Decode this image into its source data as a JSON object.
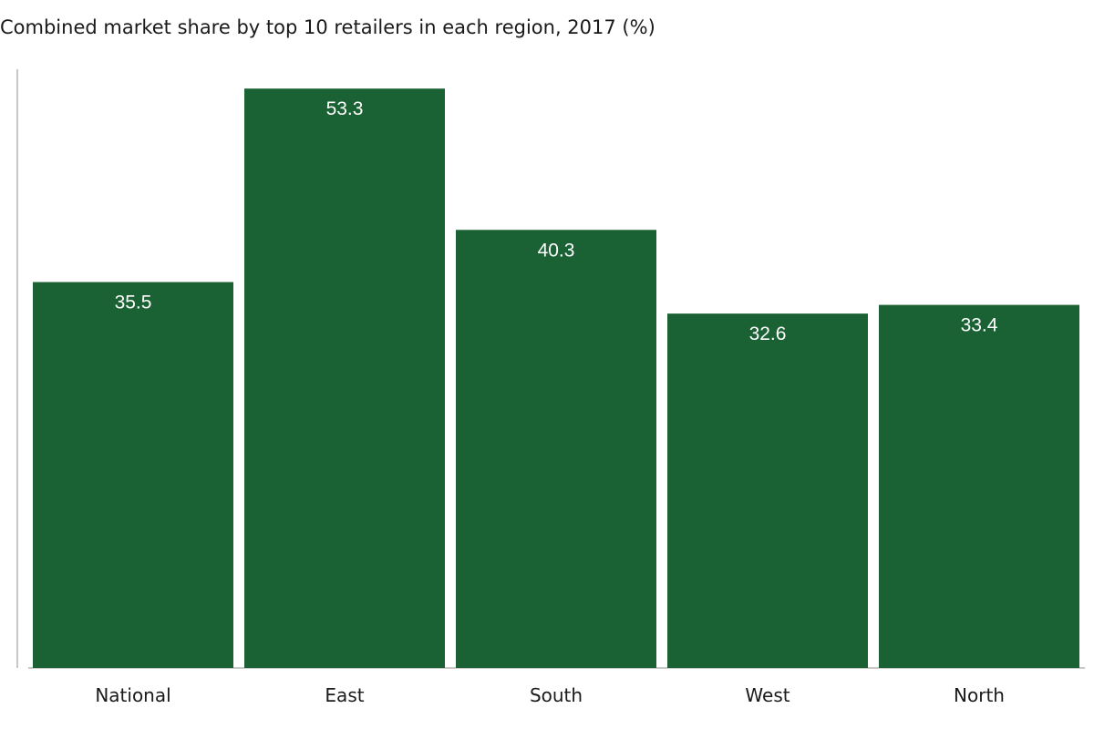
{
  "chart_data": {
    "type": "bar",
    "title": "Combined market share by top 10 retailers in each region, 2017 (%)",
    "categories": [
      "National",
      "East",
      "South",
      "West",
      "North"
    ],
    "values": [
      35.5,
      53.3,
      40.3,
      32.6,
      33.4
    ],
    "value_labels": [
      "35.5",
      "53.3",
      "40.3",
      "32.6",
      "33.4"
    ],
    "xlabel": "",
    "ylabel": "",
    "ylim": [
      0,
      56
    ],
    "grid": false,
    "legend": "none",
    "colors": {
      "bar": "#1a6133",
      "axis": "#c8c8c8"
    }
  }
}
